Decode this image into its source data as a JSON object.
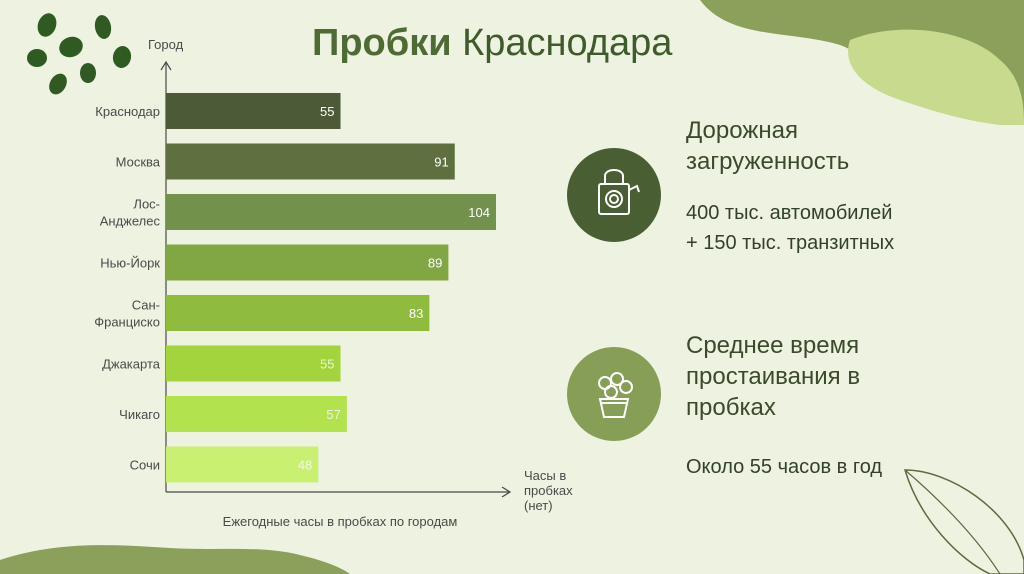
{
  "title": {
    "bold": "Пробки",
    "rest": "Краснодара"
  },
  "chart_data": {
    "type": "bar",
    "orientation": "horizontal",
    "ylabel": "Город",
    "xlabel": "Часы в пробках (нет)",
    "xlabel_lines": [
      "Часы в",
      "пробках",
      "(нет)"
    ],
    "caption": "Ежегодные часы в пробках по городам",
    "categories": [
      "Краснодар",
      "Москва",
      "Лос-Анджелес",
      "Нью-Йорк",
      "Сан-Франциско",
      "Джакарта",
      "Чикаго",
      "Сочи"
    ],
    "category_lines": [
      [
        "Краснодар"
      ],
      [
        "Москва"
      ],
      [
        "Лос-",
        "Анджелес"
      ],
      [
        "Нью-Йорк"
      ],
      [
        "Сан-",
        "Франциско"
      ],
      [
        "Джакарта"
      ],
      [
        "Чикаго"
      ],
      [
        "Сочи"
      ]
    ],
    "values": [
      55,
      91,
      104,
      89,
      83,
      55,
      57,
      48
    ],
    "bar_colors": [
      "#4d5a37",
      "#5e7040",
      "#72914a",
      "#81a745",
      "#8fbc3f",
      "#a3d43e",
      "#b3e24f",
      "#c9f071"
    ],
    "label_colors": [
      "#ffffff",
      "#ffffff",
      "#ffffff",
      "#ffffff",
      "#ffffff",
      "#eef5d8",
      "#eef5d8",
      "#f3f8e2"
    ],
    "xlim": [
      0,
      115
    ],
    "grid": false,
    "legend": "none"
  },
  "info": {
    "traffic": {
      "icon": "padlock-icon",
      "heading_lines": [
        "Дорожная",
        "загруженность"
      ],
      "text_lines": [
        "400 тыс. автомобилей",
        "+ 150 тыс. транзитных"
      ],
      "circle_color": "#4a5e33"
    },
    "downtime": {
      "icon": "flower-pot-icon",
      "heading_lines": [
        "Среднее время",
        "простаивания в",
        "пробках"
      ],
      "text": "Около 55 часов в год",
      "circle_color": "#869e56"
    }
  },
  "colors": {
    "background": "#eef2e1",
    "accent_dark": "#4e6b35",
    "accent_light": "#c9dc91"
  }
}
